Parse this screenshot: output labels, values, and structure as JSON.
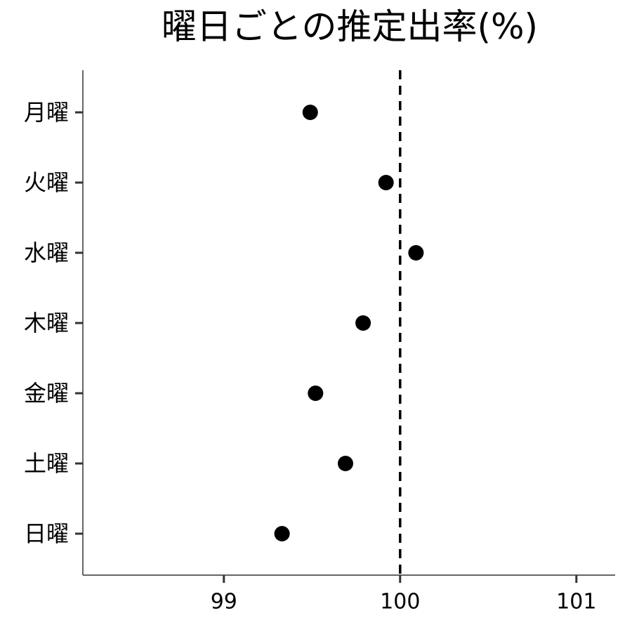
{
  "chart_data": {
    "type": "scatter",
    "title": "曜日ごとの推定出率(%)",
    "xlabel": "",
    "ylabel": "",
    "xlim": [
      98.2,
      101.22
    ],
    "x_ticks": [
      99,
      100,
      101
    ],
    "x_tick_labels": [
      "99",
      "100",
      "101"
    ],
    "categories": [
      "月曜",
      "火曜",
      "水曜",
      "木曜",
      "金曜",
      "土曜",
      "日曜"
    ],
    "values": [
      99.49,
      99.92,
      100.09,
      99.79,
      99.52,
      99.69,
      99.33
    ],
    "reference_line": 100,
    "grid": false,
    "legend": "none",
    "colors": {
      "points": "#000000",
      "reference_line": "#000000",
      "axis": "#333333"
    }
  }
}
